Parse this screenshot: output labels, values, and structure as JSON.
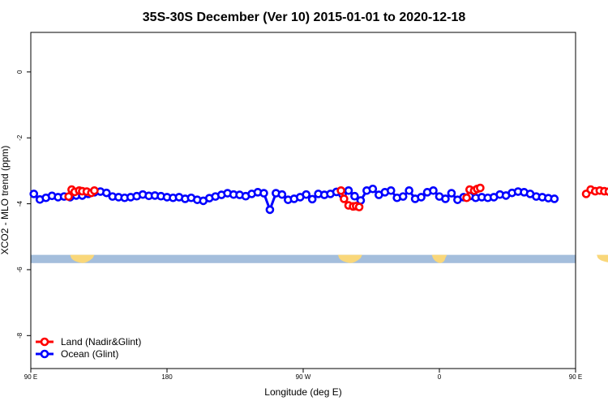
{
  "chart_data": {
    "type": "line",
    "title": "35S-30S December (Ver 10)   2015-01-01 to 2020-12-18",
    "xlabel": "Longitude (deg E)",
    "ylabel": "XCO2 - MLO trend (ppm)",
    "xlim": [
      90,
      450
    ],
    "ylim": [
      -9,
      1.2
    ],
    "x_ticks": [
      {
        "value": 90,
        "label": "90 E"
      },
      {
        "value": 180,
        "label": "180"
      },
      {
        "value": 270,
        "label": "90 W"
      },
      {
        "value": 360,
        "label": "0"
      },
      {
        "value": 450,
        "label": "90 E"
      },
      {
        "value": 540,
        "label": "180"
      }
    ],
    "y_ticks": [
      {
        "value": 0,
        "label": "0"
      },
      {
        "value": -2,
        "label": "-2"
      },
      {
        "value": -4,
        "label": "-4"
      },
      {
        "value": -6,
        "label": "-6"
      },
      {
        "value": -8,
        "label": "-8"
      }
    ],
    "grid": false,
    "legend_position": "bottom-left",
    "colors": {
      "land": "#ff0000",
      "ocean": "#0000ff",
      "map_ocean": "#a4bedc",
      "map_land": "#f9d77a"
    },
    "series": [
      {
        "name": "Land (Nadir&Glint)",
        "color": "#ff0000",
        "points": [
          [
            115,
            -3.78
          ],
          [
            117,
            -3.57
          ],
          [
            119,
            -3.64
          ],
          [
            122,
            -3.6
          ],
          [
            124,
            -3.62
          ],
          [
            127,
            -3.63
          ],
          [
            130,
            -3.67
          ],
          [
            132,
            -3.6
          ],
          [
            295,
            -3.6
          ],
          [
            297,
            -3.85
          ],
          [
            300,
            -4.05
          ],
          [
            303,
            -4.08
          ],
          [
            305,
            -4.07
          ],
          [
            307,
            -4.1
          ],
          [
            378,
            -3.82
          ],
          [
            380,
            -3.57
          ],
          [
            383,
            -3.6
          ],
          [
            385,
            -3.55
          ],
          [
            387,
            -3.52
          ],
          [
            457,
            -3.7
          ],
          [
            460,
            -3.57
          ],
          [
            463,
            -3.62
          ],
          [
            466,
            -3.6
          ],
          [
            469,
            -3.62
          ],
          [
            472,
            -3.63
          ],
          [
            475,
            -3.65
          ],
          [
            478,
            -3.6
          ]
        ]
      },
      {
        "name": "Ocean (Glint)",
        "color": "#0000ff",
        "points": [
          [
            92,
            -3.7
          ],
          [
            96,
            -3.87
          ],
          [
            100,
            -3.82
          ],
          [
            104,
            -3.76
          ],
          [
            108,
            -3.8
          ],
          [
            112,
            -3.78
          ],
          [
            116,
            -3.8
          ],
          [
            120,
            -3.75
          ],
          [
            124,
            -3.75
          ],
          [
            128,
            -3.7
          ],
          [
            132,
            -3.65
          ],
          [
            136,
            -3.63
          ],
          [
            140,
            -3.67
          ],
          [
            144,
            -3.78
          ],
          [
            148,
            -3.8
          ],
          [
            152,
            -3.82
          ],
          [
            156,
            -3.8
          ],
          [
            160,
            -3.77
          ],
          [
            164,
            -3.72
          ],
          [
            168,
            -3.76
          ],
          [
            172,
            -3.75
          ],
          [
            176,
            -3.77
          ],
          [
            180,
            -3.8
          ],
          [
            184,
            -3.82
          ],
          [
            188,
            -3.8
          ],
          [
            192,
            -3.85
          ],
          [
            196,
            -3.82
          ],
          [
            200,
            -3.88
          ],
          [
            204,
            -3.91
          ],
          [
            208,
            -3.83
          ],
          [
            212,
            -3.78
          ],
          [
            216,
            -3.73
          ],
          [
            220,
            -3.68
          ],
          [
            224,
            -3.72
          ],
          [
            228,
            -3.73
          ],
          [
            232,
            -3.77
          ],
          [
            236,
            -3.7
          ],
          [
            240,
            -3.65
          ],
          [
            244,
            -3.68
          ],
          [
            248,
            -4.18
          ],
          [
            252,
            -3.68
          ],
          [
            256,
            -3.72
          ],
          [
            260,
            -3.88
          ],
          [
            264,
            -3.85
          ],
          [
            268,
            -3.8
          ],
          [
            272,
            -3.72
          ],
          [
            276,
            -3.86
          ],
          [
            280,
            -3.7
          ],
          [
            284,
            -3.73
          ],
          [
            288,
            -3.7
          ],
          [
            292,
            -3.64
          ],
          [
            296,
            -3.72
          ],
          [
            300,
            -3.6
          ],
          [
            304,
            -3.77
          ],
          [
            308,
            -3.9
          ],
          [
            312,
            -3.6
          ],
          [
            316,
            -3.55
          ],
          [
            320,
            -3.73
          ],
          [
            324,
            -3.65
          ],
          [
            328,
            -3.6
          ],
          [
            332,
            -3.82
          ],
          [
            336,
            -3.78
          ],
          [
            340,
            -3.6
          ],
          [
            344,
            -3.85
          ],
          [
            348,
            -3.8
          ],
          [
            352,
            -3.65
          ],
          [
            356,
            -3.6
          ],
          [
            360,
            -3.78
          ],
          [
            364,
            -3.85
          ],
          [
            368,
            -3.68
          ],
          [
            372,
            -3.88
          ],
          [
            376,
            -3.8
          ],
          [
            380,
            -3.77
          ],
          [
            384,
            -3.82
          ],
          [
            388,
            -3.8
          ],
          [
            392,
            -3.82
          ],
          [
            396,
            -3.8
          ],
          [
            400,
            -3.72
          ],
          [
            404,
            -3.75
          ],
          [
            408,
            -3.67
          ],
          [
            412,
            -3.63
          ],
          [
            416,
            -3.65
          ],
          [
            420,
            -3.7
          ],
          [
            424,
            -3.78
          ],
          [
            428,
            -3.8
          ],
          [
            432,
            -3.83
          ],
          [
            436,
            -3.85
          ]
        ]
      }
    ]
  }
}
